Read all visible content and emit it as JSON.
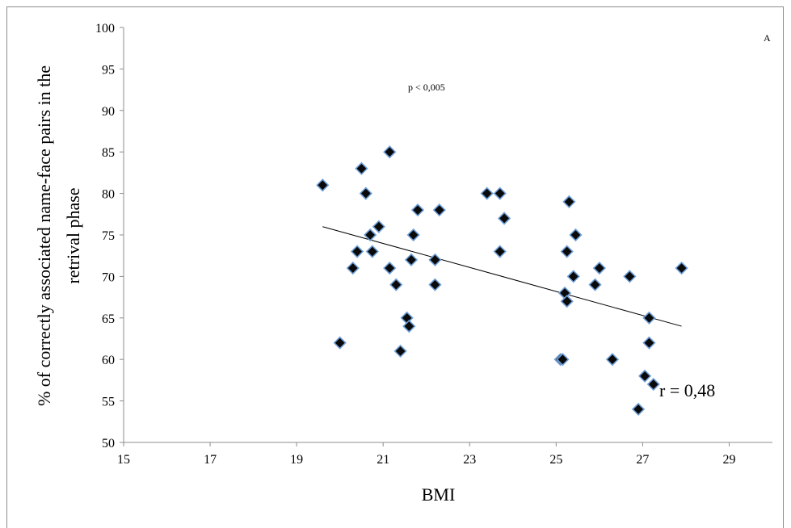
{
  "chart_data": {
    "type": "scatter",
    "title": "",
    "xlabel": "BMI",
    "ylabel_line1": "% of correctly associated name-face pairs in the",
    "ylabel_line2": "retrival  phase",
    "xlim": [
      15,
      30
    ],
    "ylim": [
      50,
      100
    ],
    "xticks": [
      15,
      17,
      19,
      21,
      23,
      25,
      27,
      29
    ],
    "yticks": [
      50,
      55,
      60,
      65,
      70,
      75,
      80,
      85,
      90,
      95,
      100
    ],
    "grid": false,
    "legend": "none",
    "marker": "diamond",
    "marker_color": "#0a0a0a",
    "marker_edge_color": "#6f9fd8",
    "trendline": {
      "x": [
        19.6,
        27.9
      ],
      "y": [
        76,
        64
      ]
    },
    "points": [
      {
        "x": 19.6,
        "y": 81
      },
      {
        "x": 20.0,
        "y": 62
      },
      {
        "x": 20.3,
        "y": 71
      },
      {
        "x": 20.4,
        "y": 73
      },
      {
        "x": 20.5,
        "y": 83
      },
      {
        "x": 20.6,
        "y": 80
      },
      {
        "x": 20.7,
        "y": 75
      },
      {
        "x": 20.75,
        "y": 73
      },
      {
        "x": 20.9,
        "y": 76
      },
      {
        "x": 21.15,
        "y": 71
      },
      {
        "x": 21.15,
        "y": 85
      },
      {
        "x": 21.3,
        "y": 69
      },
      {
        "x": 21.4,
        "y": 61
      },
      {
        "x": 21.55,
        "y": 65
      },
      {
        "x": 21.6,
        "y": 64
      },
      {
        "x": 21.65,
        "y": 72
      },
      {
        "x": 21.7,
        "y": 75
      },
      {
        "x": 21.8,
        "y": 78
      },
      {
        "x": 22.2,
        "y": 72
      },
      {
        "x": 22.2,
        "y": 69
      },
      {
        "x": 22.3,
        "y": 78
      },
      {
        "x": 23.4,
        "y": 80
      },
      {
        "x": 23.7,
        "y": 80
      },
      {
        "x": 23.7,
        "y": 73
      },
      {
        "x": 23.8,
        "y": 77
      },
      {
        "x": 25.1,
        "y": 60
      },
      {
        "x": 25.15,
        "y": 60
      },
      {
        "x": 25.2,
        "y": 68
      },
      {
        "x": 25.25,
        "y": 67
      },
      {
        "x": 25.25,
        "y": 73
      },
      {
        "x": 25.3,
        "y": 79
      },
      {
        "x": 25.4,
        "y": 70
      },
      {
        "x": 25.45,
        "y": 75
      },
      {
        "x": 25.9,
        "y": 69
      },
      {
        "x": 26.0,
        "y": 71
      },
      {
        "x": 26.3,
        "y": 60
      },
      {
        "x": 26.7,
        "y": 70
      },
      {
        "x": 26.9,
        "y": 54
      },
      {
        "x": 27.05,
        "y": 58
      },
      {
        "x": 27.15,
        "y": 65
      },
      {
        "x": 27.15,
        "y": 62
      },
      {
        "x": 27.25,
        "y": 57
      },
      {
        "x": 27.9,
        "y": 71
      }
    ],
    "annotations": {
      "p_value": "p < 0,005",
      "r_value": "r = 0,48",
      "panel_letter": "A"
    }
  }
}
